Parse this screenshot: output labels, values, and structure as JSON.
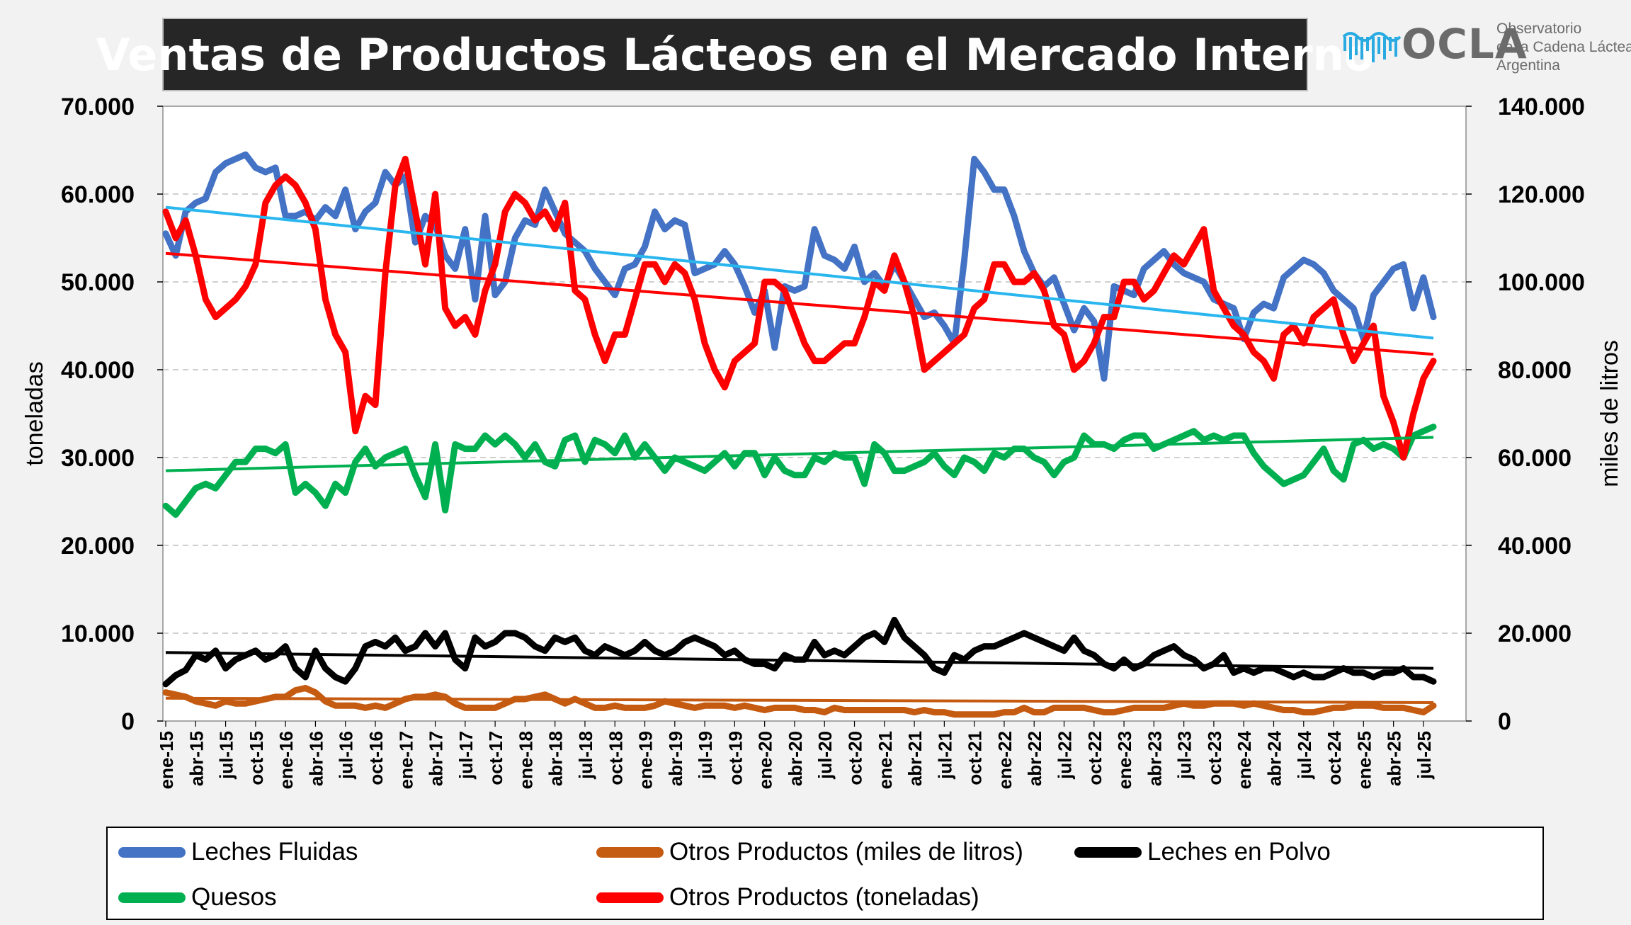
{
  "header": {
    "title": "Ventas de Productos Lácteos en el Mercado Interno"
  },
  "logo": {
    "wordmark": "OCLA",
    "line1": "Observatorio",
    "line2": "de la Cadena Láctea",
    "line3": "Argentina",
    "color": "#6b6b6b",
    "accent": "#29abe2"
  },
  "chart_data": {
    "type": "line",
    "ylabel": "toneladas",
    "y2label": "miles de litros",
    "ylim": [
      0,
      70000
    ],
    "y2lim": [
      0,
      140000
    ],
    "yticks": [
      "0",
      "10.000",
      "20.000",
      "30.000",
      "40.000",
      "50.000",
      "60.000",
      "70.000"
    ],
    "y2ticks": [
      "0",
      "20.000",
      "40.000",
      "60.000",
      "80.000",
      "100.000",
      "120.000",
      "140.000"
    ],
    "xlabels": [
      "ene-15",
      "abr-15",
      "jul-15",
      "oct-15",
      "ene-16",
      "abr-16",
      "jul-16",
      "oct-16",
      "ene-17",
      "abr-17",
      "jul-17",
      "oct-17",
      "ene-18",
      "abr-18",
      "jul-18",
      "oct-18",
      "ene-19",
      "abr-19",
      "jul-19",
      "oct-19",
      "ene-20",
      "abr-20",
      "jul-20",
      "oct-20",
      "ene-21",
      "abr-21",
      "jul-21",
      "oct-21",
      "ene-22",
      "abr-22",
      "jul-22",
      "oct-22",
      "ene-23",
      "abr-23",
      "jul-23",
      "oct-23",
      "ene-24",
      "abr-24",
      "jul-24",
      "oct-24",
      "ene-25",
      "abr-25",
      "jul-25"
    ],
    "n_points": 128,
    "grid": "horizontal dashed",
    "legend_position": "bottom",
    "series": [
      {
        "name": "Leches Fluidas",
        "axis": "left",
        "color": "#4472c4",
        "trend": [
          58500,
          43600
        ],
        "trend_color": "#29b6ef",
        "values": [
          55500,
          53000,
          58000,
          59000,
          59500,
          62500,
          63500,
          64000,
          64500,
          63000,
          62500,
          63000,
          57500,
          57500,
          58000,
          57000,
          58500,
          57500,
          60500,
          56000,
          58000,
          59000,
          62500,
          61000,
          62000,
          54500,
          57500,
          56500,
          53000,
          51500,
          56000,
          48000,
          57500,
          48500,
          50000,
          55000,
          57000,
          56500,
          60500,
          58000,
          55500,
          54500,
          53500,
          51500,
          50000,
          48500,
          51500,
          52000,
          54000,
          58000,
          56000,
          57000,
          56500,
          51000,
          51500,
          52000,
          53500,
          52000,
          49500,
          46500,
          49000,
          42500,
          49500,
          49000,
          49500,
          56000,
          53000,
          52500,
          51500,
          54000,
          50000,
          51000,
          49500,
          52000,
          50000,
          48000,
          46000,
          46500,
          45000,
          43000,
          52500,
          64000,
          62500,
          60500,
          60500,
          57500,
          53500,
          51000,
          49500,
          50500,
          47500,
          44500,
          47000,
          45500,
          39000,
          49500,
          49000,
          48500,
          51500,
          52500,
          53500,
          52000,
          51000,
          50500,
          50000,
          48000,
          47500,
          47000,
          43500,
          46500,
          47500,
          47000,
          50500,
          51500,
          52500,
          52000,
          51000,
          49000,
          48000,
          47000,
          43500,
          48500,
          50000,
          51500,
          52000,
          47000,
          50500,
          46000
        ]
      },
      {
        "name": "Otros Productos (miles de litros)",
        "axis": "right",
        "color": "#c55a11",
        "trend": [
          5200,
          4200
        ],
        "trend_color": "#c55a11",
        "values": [
          6500,
          6000,
          5500,
          4500,
          4000,
          3500,
          4500,
          4000,
          4000,
          4500,
          5000,
          5500,
          5500,
          7000,
          7500,
          6500,
          4500,
          3500,
          3500,
          3500,
          3000,
          3500,
          3000,
          4000,
          5000,
          5500,
          5500,
          6000,
          5500,
          4000,
          3000,
          3000,
          3000,
          3000,
          4000,
          5000,
          5000,
          5500,
          6000,
          5000,
          4000,
          5000,
          4000,
          3000,
          3000,
          3500,
          3000,
          3000,
          3000,
          3500,
          4500,
          4000,
          3500,
          3000,
          3500,
          3500,
          3500,
          3000,
          3500,
          3000,
          2500,
          3000,
          3000,
          3000,
          2500,
          2500,
          2000,
          3000,
          2500,
          2500,
          2500,
          2500,
          2500,
          2500,
          2500,
          2000,
          2500,
          2000,
          2000,
          1500,
          1500,
          1500,
          1500,
          1500,
          2000,
          2000,
          3000,
          2000,
          2000,
          3000,
          3000,
          3000,
          3000,
          2500,
          2000,
          2000,
          2500,
          3000,
          3000,
          3000,
          3000,
          3500,
          4000,
          3500,
          3500,
          4000,
          4000,
          4000,
          3500,
          4000,
          3500,
          3000,
          2500,
          2500,
          2000,
          2000,
          2500,
          3000,
          3000,
          3500,
          3500,
          3500,
          3000,
          3000,
          3000,
          2500,
          2000,
          3500
        ]
      },
      {
        "name": "Leches en Polvo",
        "axis": "left",
        "color": "#000000",
        "trend": [
          7800,
          6000
        ],
        "trend_color": "#000000",
        "values": [
          4200,
          5200,
          5800,
          7500,
          7000,
          8000,
          6000,
          7000,
          7500,
          8000,
          7000,
          7500,
          8500,
          6000,
          5000,
          8000,
          6000,
          5000,
          4500,
          6000,
          8500,
          9000,
          8500,
          9500,
          8000,
          8500,
          10000,
          8500,
          10000,
          7000,
          6000,
          9500,
          8500,
          9000,
          10000,
          10000,
          9500,
          8500,
          8000,
          9500,
          9000,
          9500,
          8000,
          7500,
          8500,
          8000,
          7500,
          8000,
          9000,
          8000,
          7500,
          8000,
          9000,
          9500,
          9000,
          8500,
          7500,
          8000,
          7000,
          6500,
          6500,
          6000,
          7500,
          7000,
          7000,
          9000,
          7500,
          8000,
          7500,
          8500,
          9500,
          10000,
          9000,
          11500,
          9500,
          8500,
          7500,
          6000,
          5500,
          7500,
          7000,
          8000,
          8500,
          8500,
          9000,
          9500,
          10000,
          9500,
          9000,
          8500,
          8000,
          9500,
          8000,
          7500,
          6500,
          6000,
          7000,
          6000,
          6500,
          7500,
          8000,
          8500,
          7500,
          7000,
          6000,
          6500,
          7500,
          5500,
          6000,
          5500,
          6000,
          6000,
          5500,
          5000,
          5500,
          5000,
          5000,
          5500,
          6000,
          5500,
          5500,
          5000,
          5500,
          5500,
          6000,
          5000,
          5000,
          4500
        ]
      },
      {
        "name": "Quesos",
        "axis": "left",
        "color": "#00b050",
        "trend": [
          28500,
          32300
        ],
        "trend_color": "#00b050",
        "values": [
          24500,
          23500,
          25000,
          26500,
          27000,
          26500,
          28000,
          29500,
          29500,
          31000,
          31000,
          30500,
          31500,
          26000,
          27000,
          26000,
          24500,
          27000,
          26000,
          29500,
          31000,
          29000,
          30000,
          30500,
          31000,
          28000,
          25500,
          31500,
          24000,
          31500,
          31000,
          31000,
          32500,
          31500,
          32500,
          31500,
          30000,
          31500,
          29500,
          29000,
          32000,
          32500,
          29500,
          32000,
          31500,
          30500,
          32500,
          30000,
          31500,
          30000,
          28500,
          30000,
          29500,
          29000,
          28500,
          29500,
          30500,
          29000,
          30500,
          30500,
          28000,
          30000,
          28500,
          28000,
          28000,
          30000,
          29500,
          30500,
          30000,
          30000,
          27000,
          31500,
          30500,
          28500,
          28500,
          29000,
          29500,
          30500,
          29000,
          28000,
          30000,
          29500,
          28500,
          30500,
          30000,
          31000,
          31000,
          30000,
          29500,
          28000,
          29500,
          30000,
          32500,
          31500,
          31500,
          31000,
          32000,
          32500,
          32500,
          31000,
          31500,
          32000,
          32500,
          33000,
          32000,
          32500,
          32000,
          32500,
          32500,
          30500,
          29000,
          28000,
          27000,
          27500,
          28000,
          29500,
          31000,
          28500,
          27500,
          31500,
          32000,
          31000,
          31500,
          31000,
          30000,
          32500,
          33000,
          33500
        ]
      },
      {
        "name": "Otros Productos (toneladas)",
        "axis": "right",
        "color": "#ff0000",
        "trend": [
          106500,
          83500
        ],
        "trend_color": "#ff0000",
        "values": [
          116000,
          110000,
          114000,
          106000,
          96000,
          92000,
          94000,
          96000,
          99000,
          104000,
          118000,
          122000,
          124000,
          122000,
          118000,
          112000,
          96000,
          88000,
          84000,
          66000,
          74000,
          72000,
          102000,
          122000,
          128000,
          116000,
          104000,
          120000,
          94000,
          90000,
          92000,
          88000,
          98000,
          104000,
          116000,
          120000,
          118000,
          114000,
          116000,
          112000,
          118000,
          98000,
          96000,
          88000,
          82000,
          88000,
          88000,
          96000,
          104000,
          104000,
          100000,
          104000,
          102000,
          96000,
          86000,
          80000,
          76000,
          82000,
          84000,
          86000,
          100000,
          100000,
          98000,
          92000,
          86000,
          82000,
          82000,
          84000,
          86000,
          86000,
          92000,
          100000,
          98000,
          106000,
          100000,
          92000,
          80000,
          82000,
          84000,
          86000,
          88000,
          94000,
          96000,
          104000,
          104000,
          100000,
          100000,
          102000,
          98000,
          90000,
          88000,
          80000,
          82000,
          86000,
          92000,
          92000,
          100000,
          100000,
          96000,
          98000,
          102000,
          106000,
          104000,
          108000,
          112000,
          98000,
          94000,
          90000,
          88000,
          84000,
          82000,
          78000,
          88000,
          90000,
          86000,
          92000,
          94000,
          96000,
          88000,
          82000,
          86000,
          90000,
          74000,
          68000,
          60000,
          70000,
          78000,
          82000
        ]
      }
    ]
  },
  "legend": {
    "items": [
      {
        "label": "Leches Fluidas",
        "color": "#4472c4"
      },
      {
        "label": "Otros Productos (miles de litros)",
        "color": "#c55a11"
      },
      {
        "label": "Leches en Polvo",
        "color": "#000000"
      },
      {
        "label": "Quesos",
        "color": "#00b050"
      },
      {
        "label": "Otros Productos (toneladas)",
        "color": "#ff0000"
      }
    ]
  }
}
